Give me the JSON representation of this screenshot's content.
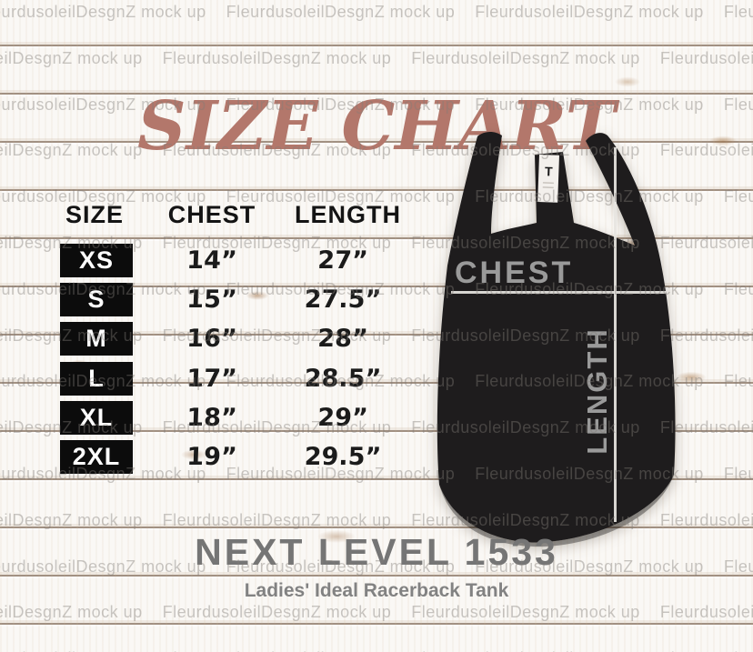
{
  "title": "SIZE CHART",
  "watermark": {
    "text": "FleurdusoleilDesgnZ mock up"
  },
  "table": {
    "headers": [
      "SIZE",
      "CHEST",
      "LENGTH"
    ],
    "rows": [
      {
        "size": "XS",
        "chest": "14”",
        "length": "27”"
      },
      {
        "size": "S",
        "chest": "15”",
        "length": "27.5”"
      },
      {
        "size": "M",
        "chest": "16”",
        "length": "28”"
      },
      {
        "size": "L",
        "chest": "17”",
        "length": "28.5”"
      },
      {
        "size": "XL",
        "chest": "18”",
        "length": "29”"
      },
      {
        "size": "2XL",
        "chest": "19”",
        "length": "29.5”"
      }
    ]
  },
  "garment": {
    "chest_label": "CHEST",
    "length_label": "LENGTH",
    "tag_letter": "T"
  },
  "footer": {
    "product": "NEXT LEVEL 1533",
    "subtitle": "Ladies' Ideal Racerback Tank"
  },
  "colors": {
    "title": "#b3776b",
    "tank": "#1e1c1d",
    "size_box": "#0c0c0c",
    "measure_label": "#9a9a9a",
    "measure_line": "#e7e5e1",
    "footer_text": "#757575",
    "wood_base": "#f7f4f0"
  },
  "chart_data": {
    "type": "table",
    "title": "SIZE CHART",
    "columns": [
      "SIZE",
      "CHEST",
      "LENGTH"
    ],
    "rows": [
      [
        "XS",
        "14”",
        "27”"
      ],
      [
        "S",
        "15”",
        "27.5”"
      ],
      [
        "M",
        "16”",
        "28”"
      ],
      [
        "L",
        "17”",
        "28.5”"
      ],
      [
        "XL",
        "18”",
        "29”"
      ],
      [
        "2XL",
        "19”",
        "29.5”"
      ]
    ],
    "units": "inches",
    "product": "NEXT LEVEL 1533",
    "product_subtitle": "Ladies' Ideal Racerback Tank"
  }
}
